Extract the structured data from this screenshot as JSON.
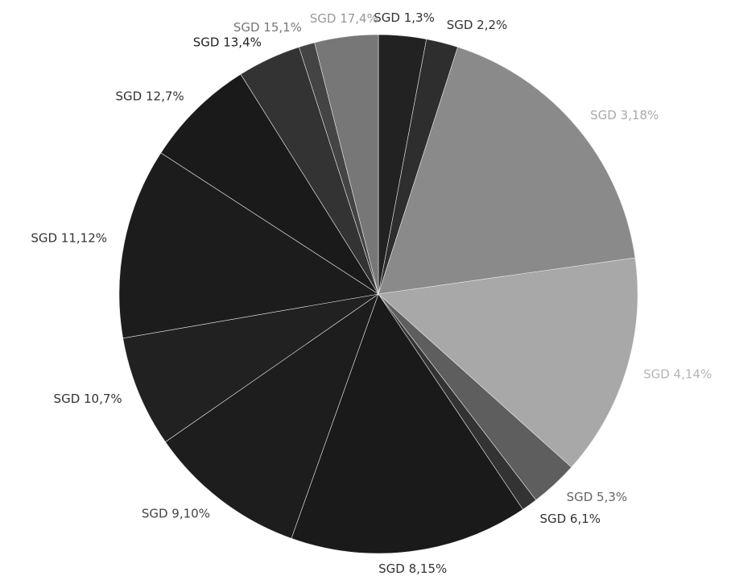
{
  "chart_data": {
    "type": "pie",
    "labels": [
      "SGD 1,3%",
      "SGD 2,2%",
      "SGD 3,18%",
      "SGD 4,14%",
      "SGD 5,3%",
      "SGD 6,1%",
      "SGD 8,15%",
      "SGD 9,10%",
      "SGD 10,7%",
      "SGD 11,12%",
      "SGD 12,7%",
      "SGD 13,4%",
      "SGD 15,1%",
      "SGD 17,4%"
    ],
    "values": [
      3,
      2,
      18,
      14,
      3,
      1,
      15,
      10,
      7,
      12,
      7,
      4,
      1,
      4
    ],
    "colors": [
      "#222222",
      "#2e2e2e",
      "#8a8a8a",
      "#a8a8a8",
      "#5e5e5e",
      "#333333",
      "#1a1a1a",
      "#1d1d1d",
      "#212121",
      "#1c1c1c",
      "#1a1a1a",
      "#333333",
      "#444444",
      "#777777"
    ],
    "label_colors": [
      "#333333",
      "#333333",
      "#aaaaaa",
      "#b5b5b5",
      "#666666",
      "#333333",
      "#333333",
      "#444444",
      "#333333",
      "#333333",
      "#333333",
      "#222222",
      "#777777",
      "#999999"
    ]
  }
}
